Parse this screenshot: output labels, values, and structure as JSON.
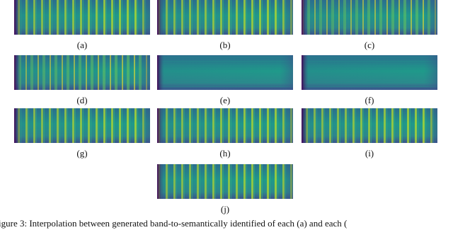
{
  "panels": [
    {
      "label": "(a)"
    },
    {
      "label": "(b)"
    },
    {
      "label": "(c)"
    },
    {
      "label": "(d)"
    },
    {
      "label": "(e)"
    },
    {
      "label": "(f)"
    },
    {
      "label": "(g)"
    },
    {
      "label": "(h)"
    },
    {
      "label": "(i)"
    },
    {
      "label": "(j)"
    }
  ],
  "caption": "igure 3: Interpolation between generated band-to-semantically identified of each (a) and each ("
}
